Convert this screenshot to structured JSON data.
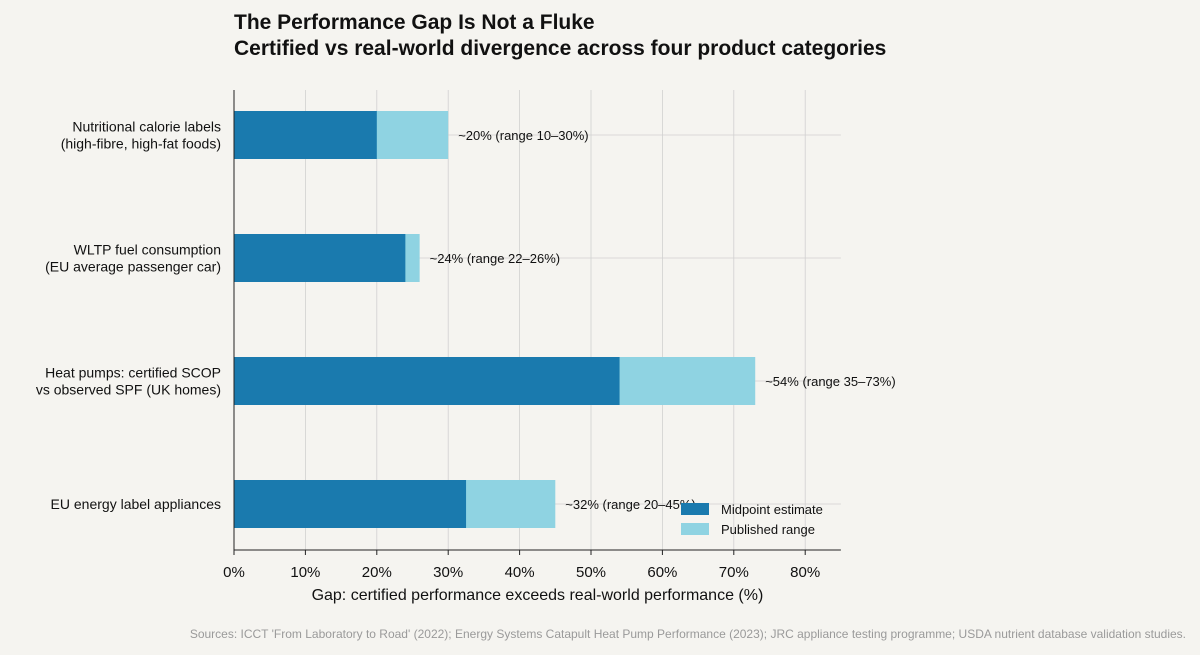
{
  "title": "The Performance Gap Is Not a Fluke",
  "subtitle": "Certified vs real-world divergence across four product categories",
  "sources": "Sources: ICCT 'From Laboratory to Road' (2022); Energy Systems Catapult Heat Pump Performance (2023); JRC appliance testing programme; USDA nutrient database validation studies.",
  "colors": {
    "midpoint": "#1a7aae",
    "range": "#8fd3e2",
    "background": "#f5f4f0",
    "grid": "#d0d0d0",
    "axis": "#222222"
  },
  "chart_data": {
    "type": "bar",
    "orientation": "horizontal",
    "xlabel": "Gap: certified performance exceeds real-world performance (%)",
    "ylabel": "",
    "xlim": [
      0,
      85
    ],
    "xticks": [
      0,
      10,
      20,
      30,
      40,
      50,
      60,
      70,
      80
    ],
    "xtick_labels": [
      "0%",
      "10%",
      "20%",
      "30%",
      "40%",
      "50%",
      "60%",
      "70%",
      "80%"
    ],
    "grid": true,
    "legend_position": "bottom-right",
    "categories": [
      {
        "label_lines": [
          "Nutritional calorie labels",
          "(high-fibre, high-fat foods)"
        ],
        "midpoint": 20,
        "range_low": 10,
        "range_high": 30,
        "annotation": "~20%  (range 10–30%)"
      },
      {
        "label_lines": [
          "WLTP fuel consumption",
          "(EU average passenger car)"
        ],
        "midpoint": 24,
        "range_low": 22,
        "range_high": 26,
        "annotation": "~24%  (range 22–26%)"
      },
      {
        "label_lines": [
          "Heat pumps: certified SCOP",
          "vs observed SPF (UK homes)"
        ],
        "midpoint": 54,
        "range_low": 35,
        "range_high": 73,
        "annotation": "~54%  (range 35–73%)"
      },
      {
        "label_lines": [
          "EU energy label appliances"
        ],
        "midpoint": 32.5,
        "range_low": 20,
        "range_high": 45,
        "annotation": "~32%  (range 20–45%)"
      }
    ],
    "series": [
      {
        "name": "Midpoint estimate",
        "color": "#1a7aae"
      },
      {
        "name": "Published range",
        "color": "#8fd3e2"
      }
    ]
  }
}
